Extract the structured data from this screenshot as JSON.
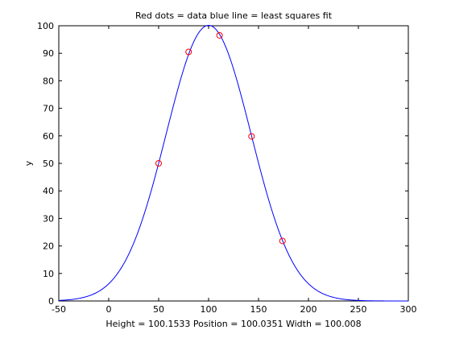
{
  "chart_data": {
    "type": "line",
    "title": "Red dots = data        blue line = least squares fit",
    "xlabel": "Height = 100.1533     Position = 100.0351     Width = 100.008",
    "ylabel": "y",
    "xlim": [
      -50,
      300
    ],
    "ylim": [
      0,
      100
    ],
    "xticks": [
      -50,
      0,
      50,
      100,
      150,
      200,
      250,
      300
    ],
    "yticks": [
      0,
      10,
      20,
      30,
      40,
      50,
      60,
      70,
      80,
      90,
      100
    ],
    "grid": false,
    "legend": "none",
    "series": [
      {
        "kind": "line",
        "color": "#0000ff",
        "function": "gaussian",
        "height": 100.1533,
        "position": 100.0351,
        "width": 100.008,
        "x_range": [
          -50,
          300
        ]
      },
      {
        "kind": "scatter",
        "marker": "circle",
        "color": "#ff0000",
        "x": [
          50,
          80,
          111,
          143,
          174
        ],
        "y": [
          50,
          90.5,
          96.5,
          59.8,
          21.8
        ]
      }
    ]
  }
}
